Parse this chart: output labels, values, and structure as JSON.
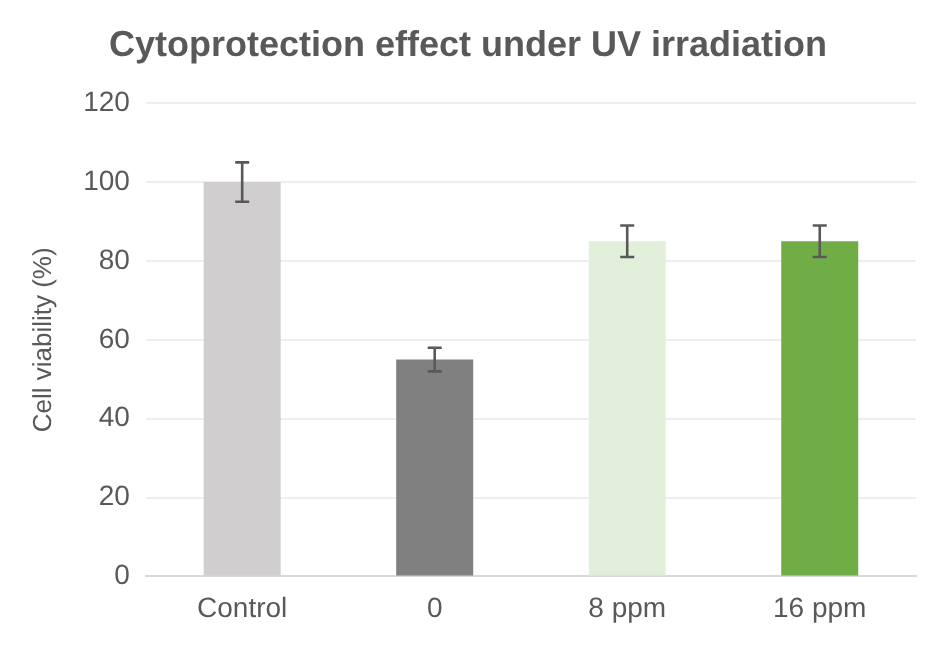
{
  "chart_data": {
    "type": "bar",
    "title": "Cytoprotection effect under UV irradiation",
    "ylabel": "Cell viability (%)",
    "categories": [
      "Control",
      "0",
      "8 ppm",
      "16 ppm"
    ],
    "values": [
      100,
      55,
      85,
      85
    ],
    "colors": [
      "#d0cece",
      "#808080",
      "#e2efda",
      "#70ad47"
    ],
    "errors": [
      5,
      3,
      4,
      4
    ],
    "ylim": [
      0,
      120
    ],
    "yticks": [
      0,
      20,
      40,
      60,
      80,
      100,
      120
    ],
    "grid": "y"
  }
}
